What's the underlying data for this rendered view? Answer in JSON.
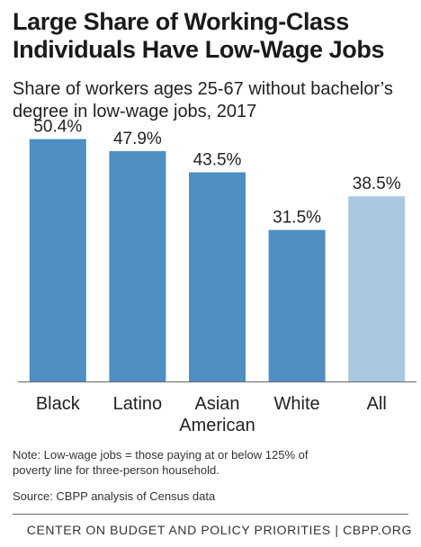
{
  "title_lines": [
    "Large Share of Working-Class",
    "Individuals Have Low-Wage Jobs"
  ],
  "subtitle_lines": [
    "Share of workers ages 25-67 without bachelor’s",
    "degree in low-wage jobs, 2017"
  ],
  "chart_data": {
    "type": "bar",
    "title": "Large Share of Working-Class Individuals Have Low-Wage Jobs",
    "subtitle": "Share of workers ages 25-67 without bachelor’s degree in low-wage jobs, 2017",
    "categories": [
      [
        "Black"
      ],
      [
        "Latino"
      ],
      [
        "Asian",
        "American"
      ],
      [
        "White"
      ],
      [
        "All"
      ]
    ],
    "values": [
      50.4,
      47.9,
      43.5,
      31.5,
      38.5
    ],
    "value_labels": [
      "50.4%",
      "47.9%",
      "43.5%",
      "31.5%",
      "38.5%"
    ],
    "colors": [
      "#4f8fc3",
      "#4f8fc3",
      "#4f8fc3",
      "#4f8fc3",
      "#a9c8e0"
    ],
    "ylim": [
      0,
      55
    ],
    "grid": false,
    "xlabel": "",
    "ylabel": ""
  },
  "note_lines": [
    "Note:  Low-wage jobs = those paying at or below 125% of",
    "poverty line for three-person household."
  ],
  "source": "Source: CBPP analysis of Census data",
  "footer": "CENTER ON BUDGET AND POLICY PRIORITIES | CBPP.ORG"
}
